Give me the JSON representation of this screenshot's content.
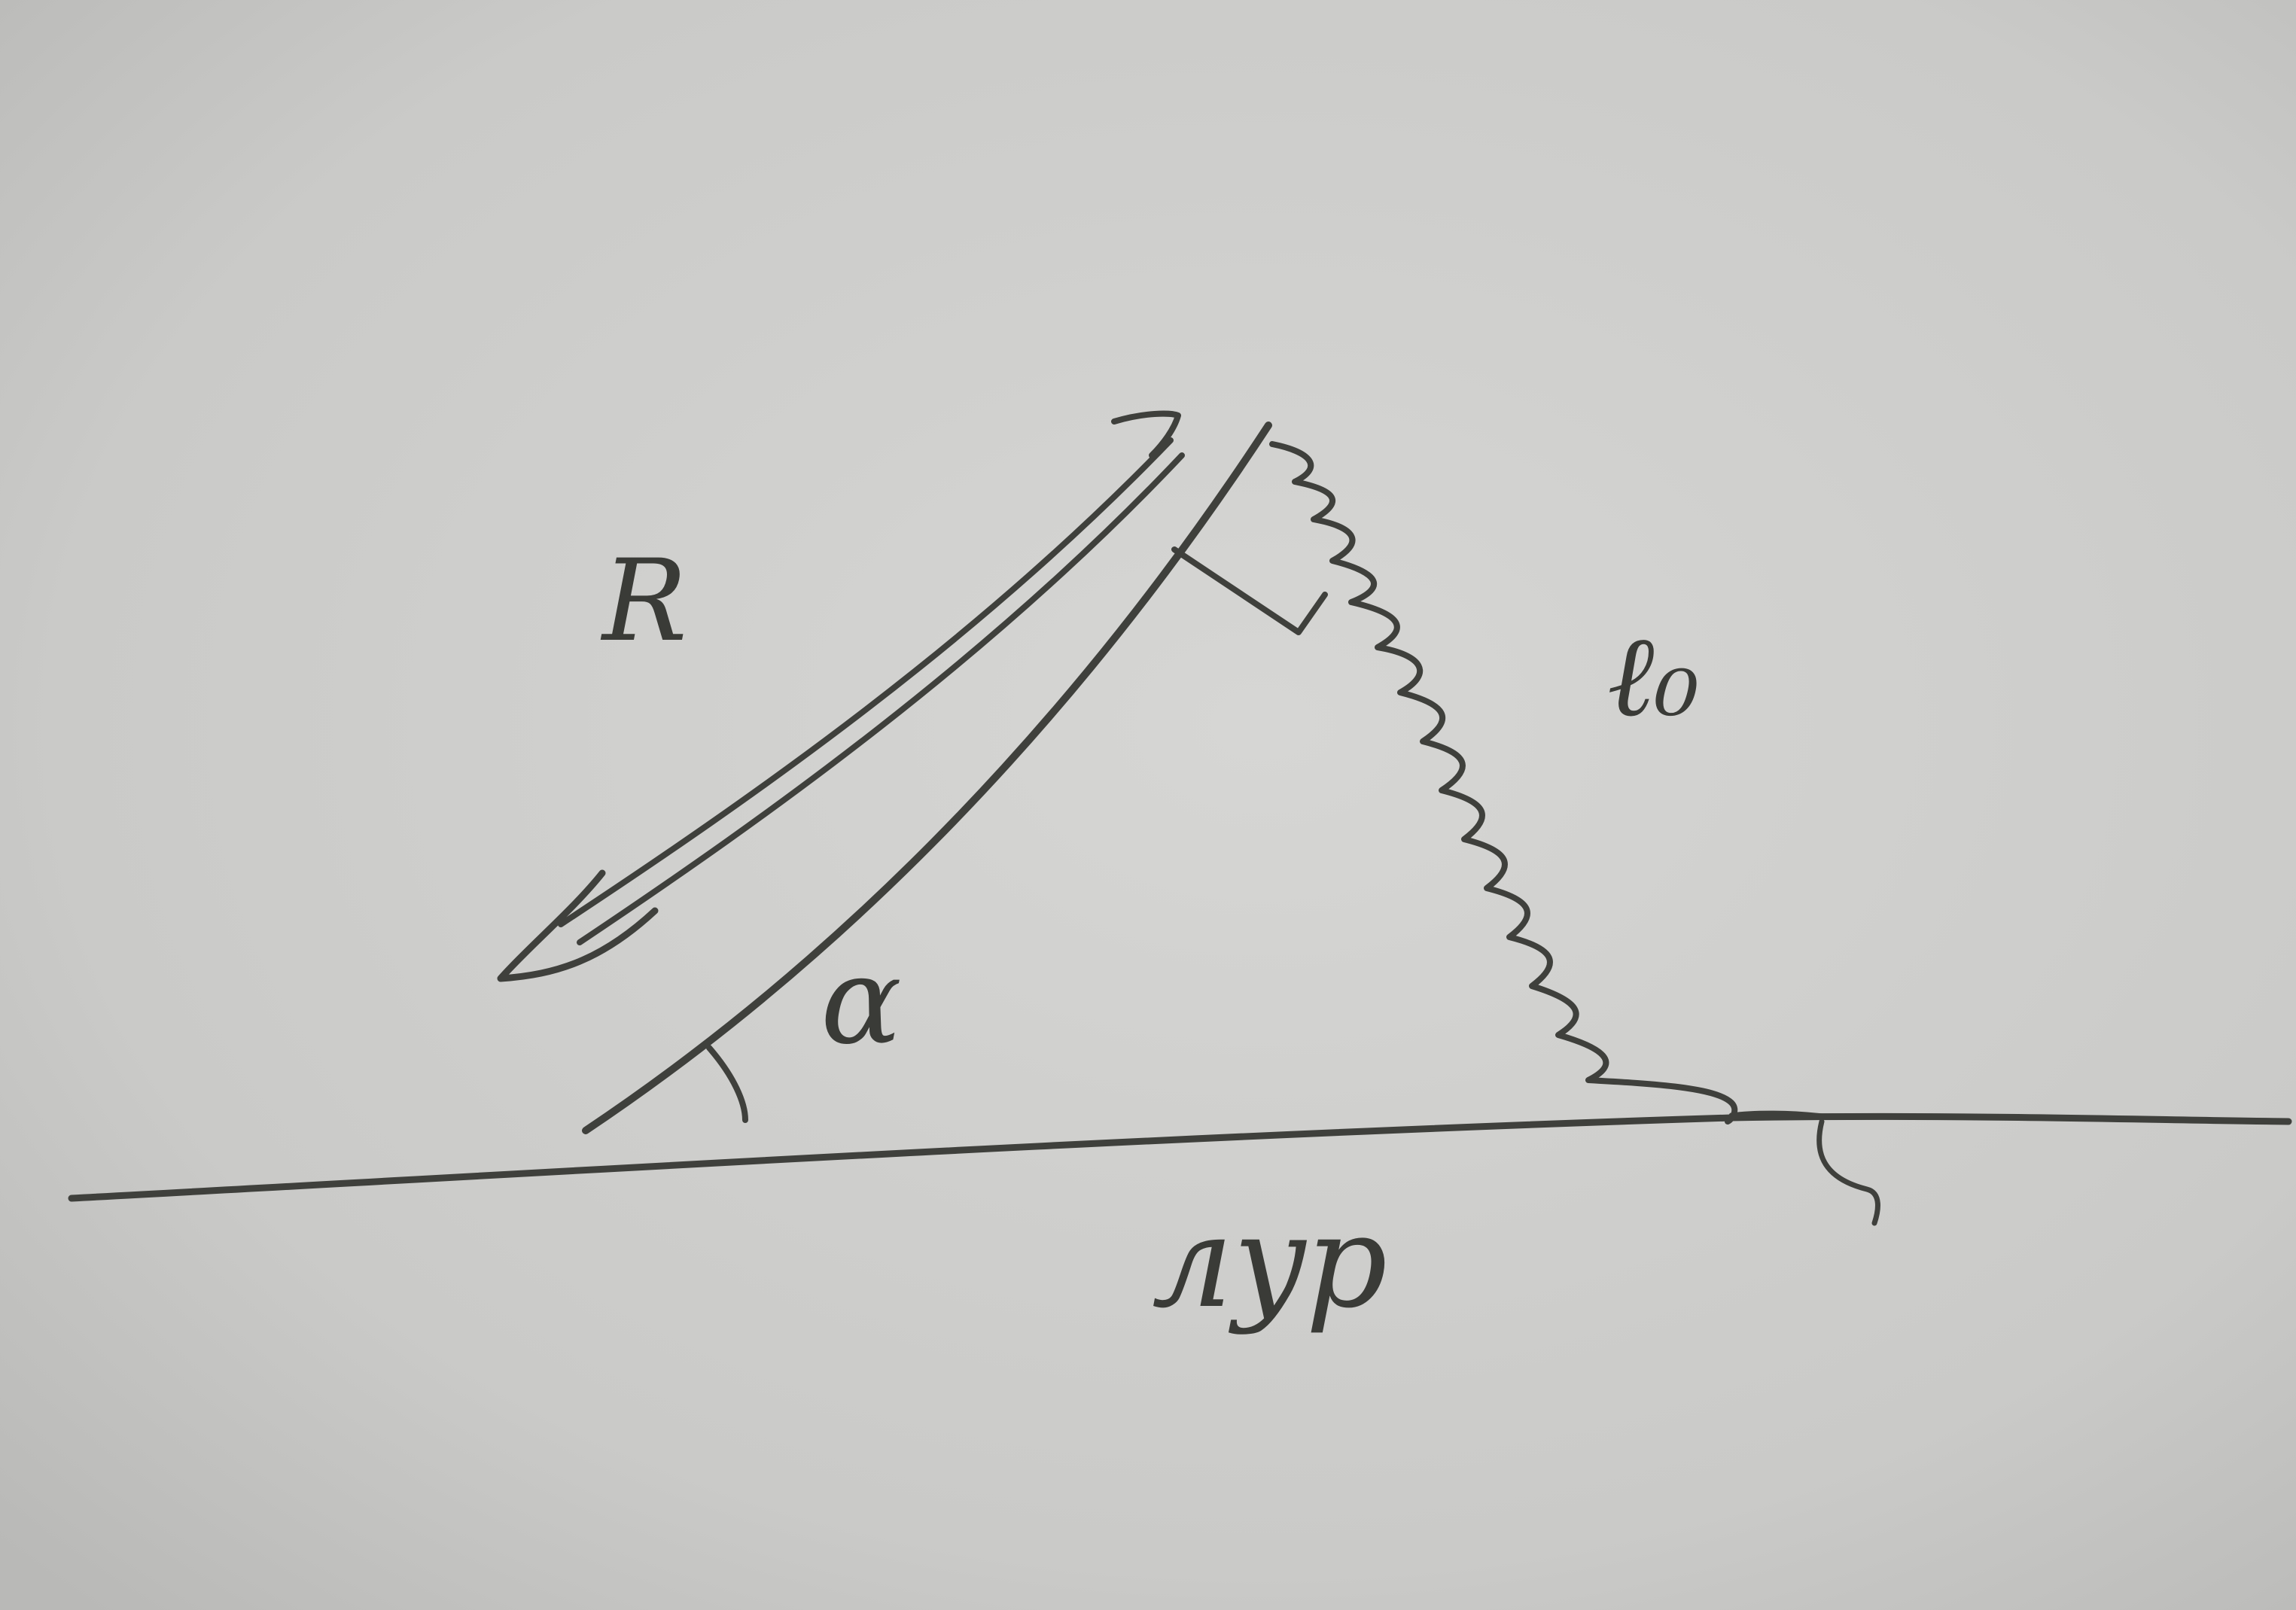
{
  "diagram": {
    "labels": {
      "force": "R",
      "angle": "α",
      "spring": "ℓ₀",
      "ground": "лyp"
    }
  },
  "colors": {
    "paper": "#c9c9c7",
    "pencil": "#3f403c"
  }
}
